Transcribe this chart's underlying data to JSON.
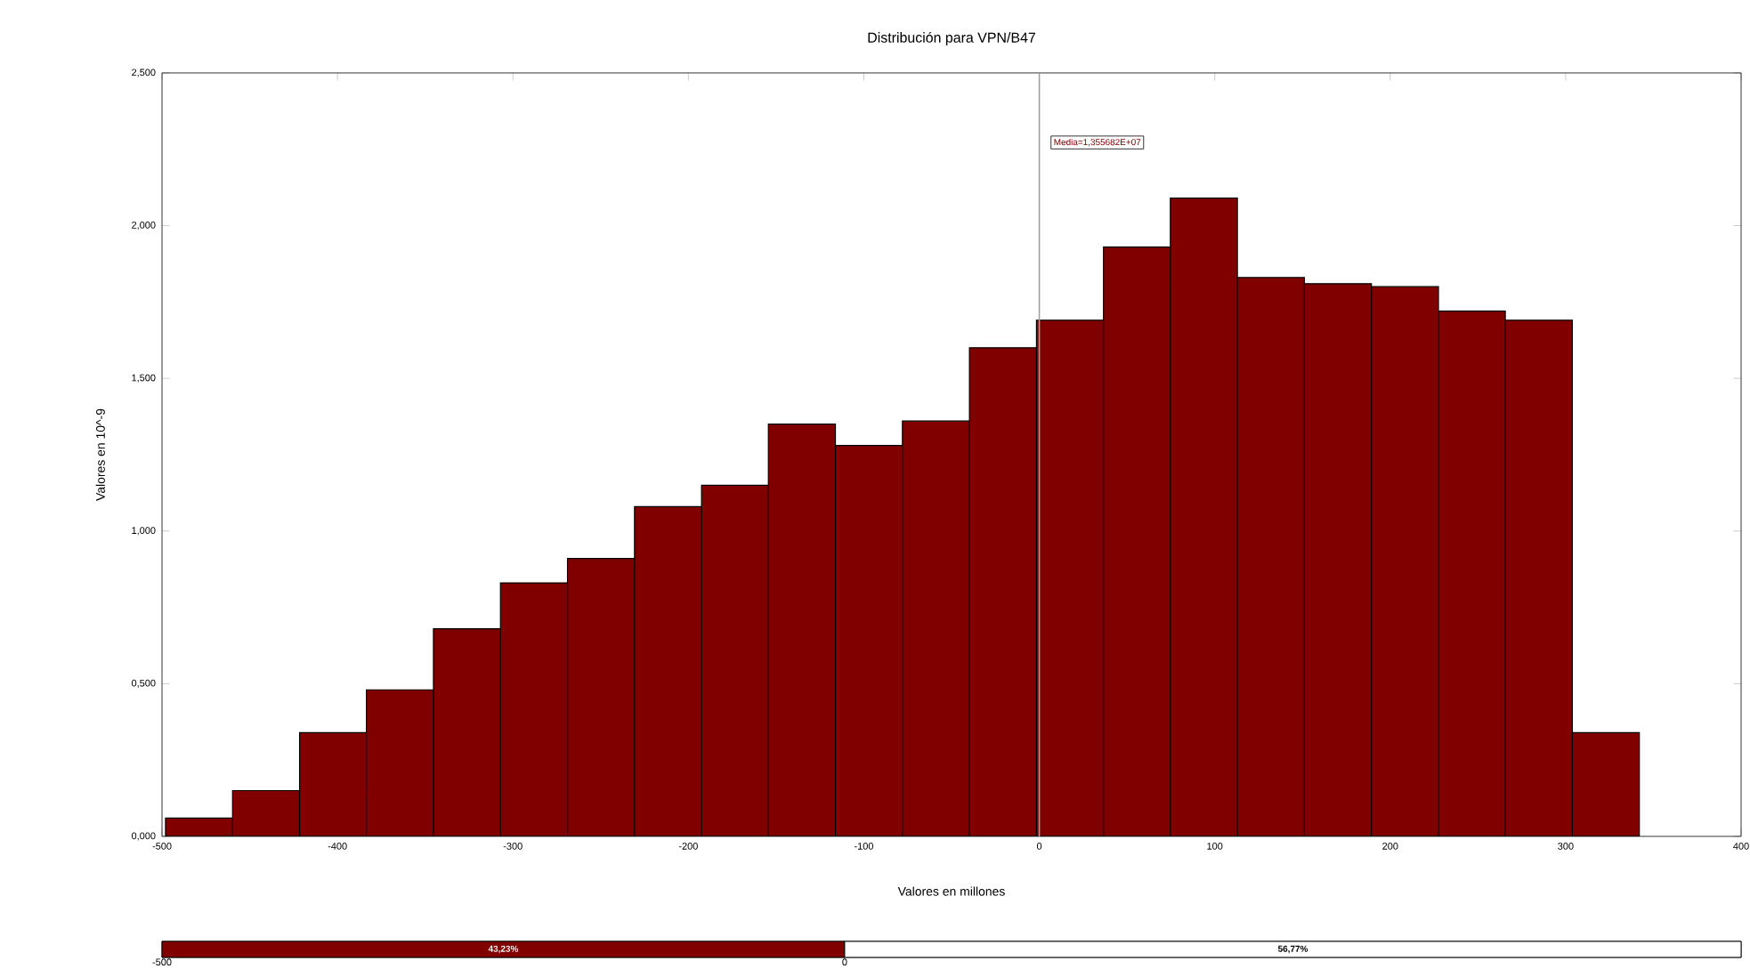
{
  "chart_data": [
    {
      "type": "histogram",
      "title": "Distribución para VPN/B47",
      "xlabel": "Valores en millones",
      "ylabel": "Valores en 10^-9",
      "bins": [
        -498,
        -459.8,
        -421.6,
        -383.5,
        -345.3,
        -307.1,
        -268.9,
        -230.7,
        -192.5,
        -154.4,
        -116.2,
        -78.0,
        -39.8,
        -1.6,
        36.6,
        74.7,
        112.9,
        151.1,
        189.3,
        227.5,
        265.6,
        303.8,
        342.0
      ],
      "values": [
        0.06,
        0.15,
        0.34,
        0.48,
        0.68,
        0.83,
        0.91,
        1.08,
        1.15,
        1.35,
        1.28,
        1.36,
        1.6,
        1.69,
        1.93,
        2.09,
        1.83,
        1.81,
        1.8,
        1.72,
        1.69,
        0.34
      ],
      "color": "#800000",
      "xlim": [
        -500,
        400
      ],
      "xticks": [
        -500,
        -400,
        -300,
        -200,
        -100,
        0,
        100,
        200,
        300,
        400
      ],
      "ylim": [
        0,
        2.5
      ],
      "yticks": [
        {
          "value": 0,
          "label": "0,000"
        },
        {
          "value": 0.5,
          "label": "0,500"
        },
        {
          "value": 1,
          "label": "1,000"
        },
        {
          "value": 1.5,
          "label": "1,500"
        },
        {
          "value": 2,
          "label": "2,000"
        },
        {
          "value": 2.5,
          "label": "2,500"
        }
      ],
      "ref_lines": [
        {
          "axis": "x",
          "value": 0,
          "color": "#a0a0a0"
        }
      ],
      "annotations": [
        "Media=1,355682E+07"
      ],
      "grid": false
    },
    {
      "type": "bar",
      "orientation": "horizontal",
      "stacked": true,
      "categories": [
        null
      ],
      "series": [
        {
          "color": "#800000",
          "values": [
            43.23
          ],
          "value_labels": [
            "43,23%"
          ]
        },
        {
          "color": "#ffffff",
          "values": [
            56.77
          ],
          "value_labels": [
            "56,77%"
          ]
        }
      ],
      "xlim": [
        0,
        100
      ],
      "tick_labels": false,
      "annotations": [
        "-500",
        "0"
      ]
    }
  ]
}
